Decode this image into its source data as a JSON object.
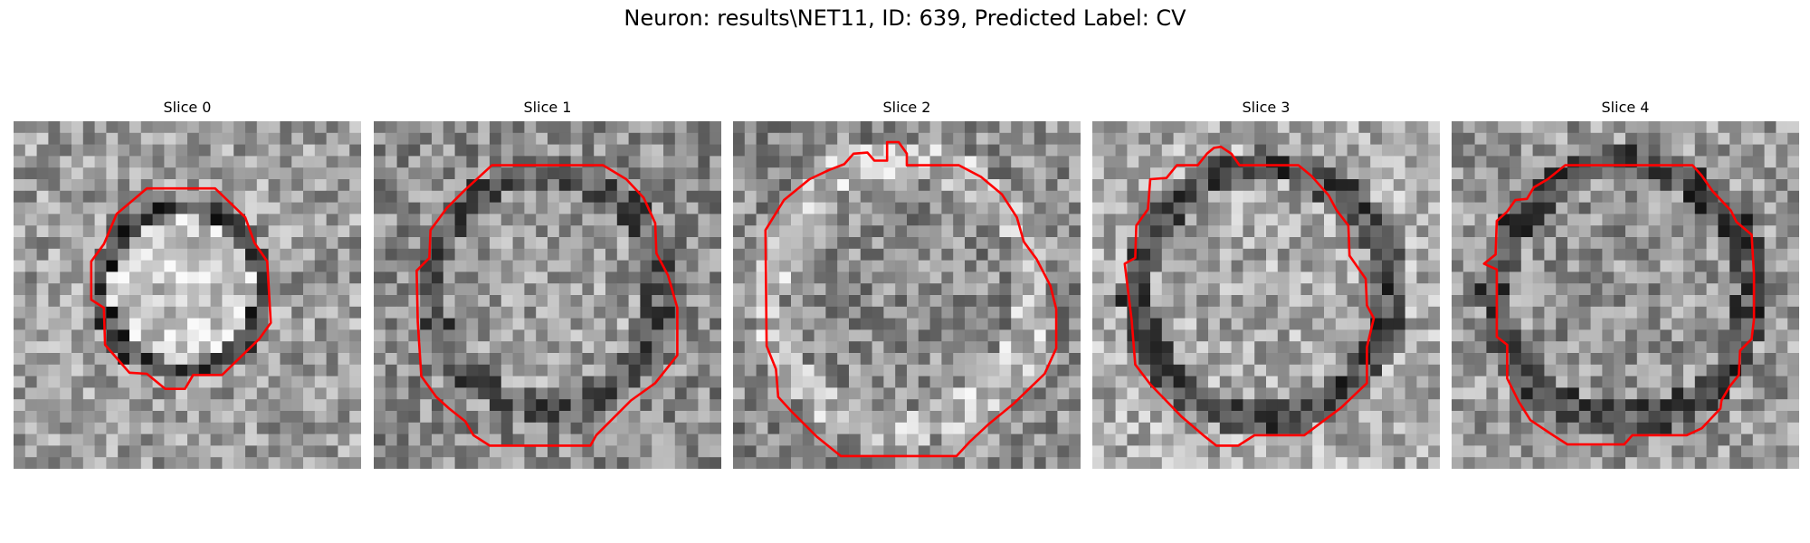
{
  "figure": {
    "title": "Neuron: results\\NET11, ID: 639, Predicted Label: CV"
  },
  "panels": [
    {
      "title": "Slice 0"
    },
    {
      "title": "Slice 1"
    },
    {
      "title": "Slice 2"
    },
    {
      "title": "Slice 3"
    },
    {
      "title": "Slice 4"
    }
  ],
  "colors": {
    "contour": "#ff0000"
  }
}
